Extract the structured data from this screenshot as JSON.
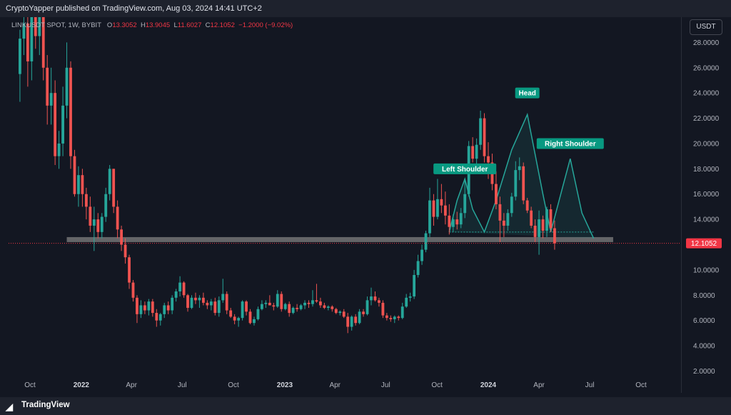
{
  "header": {
    "attribution": "CryptoYapper published on TradingView.com, Aug 03, 2024 14:41 UTC+2"
  },
  "symbol_line": {
    "symbol": "LINKUSDT SPOT, 1W, BYBIT",
    "o_label": "O",
    "o_value": "13.3052",
    "h_label": "H",
    "h_value": "13.9045",
    "l_label": "L",
    "l_value": "11.6027",
    "c_label": "C",
    "c_value": "12.1052",
    "change": "−1.2000 (−9.02%)"
  },
  "currency_button": "USDT",
  "footer": {
    "logo_icon": "tradingview-logo-icon",
    "brand": "TradingView"
  },
  "colors": {
    "up": "#26a69a",
    "down": "#ef5350",
    "background": "#131722",
    "support": "#808080",
    "label_bg": "#089981",
    "price_tag": "#f23645"
  },
  "chart_data": {
    "type": "candlestick",
    "title": "LINKUSDT SPOT, 1W, BYBIT",
    "ylim": [
      0.5,
      30
    ],
    "y_ticks": [
      "28.0000",
      "26.0000",
      "24.0000",
      "22.0000",
      "20.0000",
      "18.0000",
      "16.0000",
      "14.0000",
      "12.1052",
      "10.0000",
      "8.0000",
      "6.0000",
      "4.0000",
      "2.0000"
    ],
    "x_ticks": [
      "Oct",
      "2022",
      "Apr",
      "Jul",
      "Oct",
      "2023",
      "Apr",
      "Jul",
      "Oct",
      "2024",
      "Apr",
      "Jul",
      "Oct"
    ],
    "x_tick_dates": [
      "2021-10-01",
      "2022-01-01",
      "2022-04-01",
      "2022-07-01",
      "2022-10-01",
      "2023-01-01",
      "2023-04-01",
      "2023-07-01",
      "2023-10-01",
      "2024-01-01",
      "2024-04-01",
      "2024-07-01",
      "2024-10-01"
    ],
    "last_price": 12.1052,
    "support_level": 12.4,
    "support_start": "2021-12-06",
    "support_end": "2024-08-12",
    "annotations": [
      {
        "text": "Left Shoulder",
        "date": "2023-11-20",
        "price": 18.0
      },
      {
        "text": "Head",
        "date": "2024-03-11",
        "price": 24.0
      },
      {
        "text": "Right Shoulder",
        "date": "2024-05-27",
        "price": 20.0
      }
    ],
    "pattern_path": [
      {
        "date": "2023-10-23",
        "price": 13.0
      },
      {
        "date": "2023-11-06",
        "price": 15.5
      },
      {
        "date": "2023-11-20",
        "price": 17.2
      },
      {
        "date": "2023-12-04",
        "price": 14.8
      },
      {
        "date": "2023-12-25",
        "price": 13.0
      },
      {
        "date": "2024-01-15",
        "price": 15.5
      },
      {
        "date": "2024-02-12",
        "price": 19.5
      },
      {
        "date": "2024-03-11",
        "price": 22.3
      },
      {
        "date": "2024-04-08",
        "price": 16.0
      },
      {
        "date": "2024-04-22",
        "price": 13.0
      },
      {
        "date": "2024-05-13",
        "price": 16.5
      },
      {
        "date": "2024-05-27",
        "price": 18.8
      },
      {
        "date": "2024-06-17",
        "price": 14.5
      },
      {
        "date": "2024-07-08",
        "price": 12.5
      }
    ],
    "start_date": "2021-09-13",
    "candle_days": 7,
    "candles": [
      [
        25.5,
        29.0,
        23.3,
        28.3
      ],
      [
        28.3,
        30.0,
        27.0,
        29.5
      ],
      [
        29.5,
        30.0,
        24.5,
        26.5
      ],
      [
        26.5,
        31.0,
        25.0,
        30.0
      ],
      [
        30.0,
        35.0,
        27.5,
        28.5
      ],
      [
        28.5,
        31.5,
        27.0,
        30.5
      ],
      [
        30.5,
        33.0,
        25.0,
        26.0
      ],
      [
        26.0,
        27.0,
        21.5,
        23.0
      ],
      [
        23.0,
        26.0,
        21.5,
        24.0
      ],
      [
        24.0,
        25.0,
        18.3,
        19.0
      ],
      [
        19.0,
        21.0,
        18.0,
        20.0
      ],
      [
        20.0,
        24.5,
        19.0,
        23.0
      ],
      [
        23.0,
        28.0,
        22.0,
        26.0
      ],
      [
        26.0,
        26.5,
        18.0,
        19.0
      ],
      [
        19.0,
        19.5,
        15.8,
        16.0
      ],
      [
        16.0,
        18.2,
        15.0,
        17.5
      ],
      [
        17.5,
        18.0,
        15.0,
        16.0
      ],
      [
        16.0,
        16.5,
        14.0,
        15.0
      ],
      [
        15.0,
        15.8,
        13.0,
        13.5
      ],
      [
        13.5,
        15.0,
        11.5,
        14.0
      ],
      [
        14.0,
        14.5,
        12.5,
        13.0
      ],
      [
        13.0,
        14.5,
        12.5,
        14.2
      ],
      [
        14.2,
        16.5,
        13.8,
        16.0
      ],
      [
        16.0,
        18.3,
        15.5,
        18.0
      ],
      [
        18.0,
        18.0,
        14.5,
        15.0
      ],
      [
        15.0,
        15.5,
        12.5,
        13.2
      ],
      [
        13.2,
        13.5,
        11.5,
        12.0
      ],
      [
        12.0,
        12.5,
        10.5,
        11.0
      ],
      [
        11.0,
        11.2,
        8.5,
        9.0
      ],
      [
        9.0,
        9.2,
        7.5,
        7.8
      ],
      [
        7.8,
        8.0,
        5.8,
        6.5
      ],
      [
        6.5,
        7.6,
        6.2,
        7.2
      ],
      [
        7.2,
        7.5,
        6.5,
        6.8
      ],
      [
        6.8,
        7.7,
        6.4,
        7.5
      ],
      [
        7.5,
        7.7,
        6.3,
        6.6
      ],
      [
        6.6,
        6.9,
        5.5,
        6.0
      ],
      [
        6.0,
        6.6,
        5.6,
        6.5
      ],
      [
        6.5,
        7.4,
        6.2,
        7.2
      ],
      [
        7.2,
        7.5,
        6.5,
        6.8
      ],
      [
        6.8,
        8.0,
        6.5,
        7.8
      ],
      [
        7.8,
        8.5,
        7.5,
        8.3
      ],
      [
        8.3,
        9.5,
        7.9,
        9.0
      ],
      [
        9.0,
        9.1,
        7.8,
        8.0
      ],
      [
        8.0,
        8.1,
        6.7,
        7.0
      ],
      [
        7.0,
        8.0,
        6.9,
        7.8
      ],
      [
        7.8,
        8.2,
        7.3,
        7.6
      ],
      [
        7.6,
        8.0,
        7.0,
        7.8
      ],
      [
        7.8,
        8.2,
        7.2,
        7.4
      ],
      [
        7.4,
        7.6,
        6.9,
        7.2
      ],
      [
        7.2,
        7.7,
        6.8,
        7.5
      ],
      [
        7.5,
        7.8,
        6.4,
        6.6
      ],
      [
        6.6,
        7.9,
        6.3,
        7.6
      ],
      [
        7.6,
        9.3,
        7.4,
        8.1
      ],
      [
        8.1,
        8.3,
        6.5,
        6.8
      ],
      [
        6.8,
        7.0,
        6.2,
        6.3
      ],
      [
        6.3,
        6.5,
        5.7,
        6.0
      ],
      [
        6.0,
        6.3,
        5.5,
        6.2
      ],
      [
        6.2,
        7.6,
        6.0,
        7.5
      ],
      [
        7.5,
        7.6,
        6.4,
        6.7
      ],
      [
        6.7,
        6.9,
        5.7,
        5.8
      ],
      [
        5.8,
        6.3,
        5.6,
        6.1
      ],
      [
        6.1,
        7.1,
        6.0,
        6.9
      ],
      [
        6.9,
        7.6,
        6.8,
        7.3
      ],
      [
        7.3,
        7.6,
        7.0,
        7.4
      ],
      [
        7.4,
        8.0,
        7.2,
        7.2
      ],
      [
        7.2,
        7.4,
        6.8,
        7.1
      ],
      [
        7.1,
        8.4,
        7.0,
        8.1
      ],
      [
        8.1,
        8.3,
        6.7,
        6.9
      ],
      [
        6.9,
        7.4,
        6.8,
        7.3
      ],
      [
        7.3,
        7.5,
        6.3,
        6.6
      ],
      [
        6.6,
        7.1,
        6.5,
        7.0
      ],
      [
        7.0,
        7.3,
        6.7,
        6.9
      ],
      [
        6.9,
        7.3,
        6.8,
        7.2
      ],
      [
        7.2,
        7.6,
        6.9,
        7.4
      ],
      [
        7.4,
        7.6,
        7.0,
        7.3
      ],
      [
        7.3,
        8.4,
        7.1,
        7.6
      ],
      [
        7.6,
        8.9,
        7.4,
        7.5
      ],
      [
        7.5,
        7.8,
        7.0,
        7.2
      ],
      [
        7.2,
        7.4,
        6.9,
        7.0
      ],
      [
        7.0,
        7.2,
        6.8,
        7.1
      ],
      [
        7.1,
        7.2,
        6.7,
        6.9
      ],
      [
        6.9,
        7.0,
        6.5,
        6.6
      ],
      [
        6.6,
        6.8,
        6.4,
        6.7
      ],
      [
        6.7,
        6.9,
        6.2,
        6.3
      ],
      [
        6.3,
        6.6,
        5.0,
        5.5
      ],
      [
        5.5,
        6.4,
        5.2,
        6.3
      ],
      [
        6.3,
        6.5,
        5.6,
        5.8
      ],
      [
        5.8,
        6.9,
        5.7,
        6.7
      ],
      [
        6.7,
        6.9,
        6.3,
        6.5
      ],
      [
        6.5,
        7.9,
        6.4,
        7.6
      ],
      [
        7.6,
        8.6,
        7.2,
        7.9
      ],
      [
        7.9,
        8.3,
        7.5,
        7.6
      ],
      [
        7.6,
        7.8,
        7.1,
        7.4
      ],
      [
        7.4,
        7.6,
        6.2,
        6.4
      ],
      [
        6.4,
        6.6,
        6.0,
        6.2
      ],
      [
        6.2,
        6.4,
        5.9,
        6.1
      ],
      [
        6.1,
        6.4,
        5.8,
        6.3
      ],
      [
        6.3,
        6.4,
        6.0,
        6.2
      ],
      [
        6.2,
        7.4,
        6.1,
        7.1
      ],
      [
        7.1,
        8.1,
        7.0,
        7.8
      ],
      [
        7.8,
        8.2,
        7.5,
        7.9
      ],
      [
        7.9,
        10.0,
        7.7,
        9.6
      ],
      [
        9.6,
        11.2,
        9.4,
        10.7
      ],
      [
        10.7,
        12.0,
        10.4,
        11.6
      ],
      [
        11.6,
        13.1,
        11.4,
        12.9
      ],
      [
        12.9,
        16.5,
        12.6,
        15.5
      ],
      [
        15.5,
        16.0,
        13.5,
        14.2
      ],
      [
        14.2,
        17.2,
        14.0,
        15.6
      ],
      [
        15.6,
        16.8,
        14.5,
        15.1
      ],
      [
        15.1,
        16.2,
        13.6,
        14.3
      ],
      [
        14.3,
        15.2,
        12.8,
        13.4
      ],
      [
        13.4,
        14.4,
        13.0,
        14.0
      ],
      [
        14.0,
        14.6,
        13.2,
        13.6
      ],
      [
        13.6,
        14.9,
        13.3,
        14.5
      ],
      [
        14.5,
        17.1,
        14.1,
        16.0
      ],
      [
        16.0,
        20.2,
        15.8,
        19.8
      ],
      [
        19.8,
        20.5,
        18.5,
        18.8
      ],
      [
        18.8,
        20.4,
        18.1,
        19.9
      ],
      [
        19.9,
        22.6,
        19.5,
        22.0
      ],
      [
        22.0,
        22.4,
        18.5,
        19.0
      ],
      [
        19.0,
        20.1,
        17.2,
        18.5
      ],
      [
        18.5,
        19.2,
        16.3,
        16.8
      ],
      [
        16.8,
        17.8,
        14.8,
        15.2
      ],
      [
        15.2,
        15.8,
        12.2,
        13.9
      ],
      [
        13.9,
        14.5,
        12.6,
        13.5
      ],
      [
        13.5,
        14.8,
        13.1,
        14.5
      ],
      [
        14.5,
        16.1,
        14.2,
        15.8
      ],
      [
        15.8,
        18.6,
        15.5,
        17.9
      ],
      [
        17.9,
        18.9,
        17.1,
        18.2
      ],
      [
        18.2,
        18.5,
        15.2,
        15.5
      ],
      [
        15.5,
        15.7,
        14.5,
        14.7
      ],
      [
        14.7,
        15.0,
        13.3,
        13.5
      ],
      [
        13.5,
        14.0,
        12.2,
        12.6
      ],
      [
        12.6,
        14.7,
        11.2,
        14.0
      ],
      [
        14.0,
        14.3,
        12.5,
        13.1
      ],
      [
        13.1,
        15.0,
        12.6,
        14.8
      ],
      [
        14.8,
        15.2,
        13.0,
        13.3
      ],
      [
        13.3,
        13.9,
        11.6,
        12.1
      ]
    ]
  }
}
